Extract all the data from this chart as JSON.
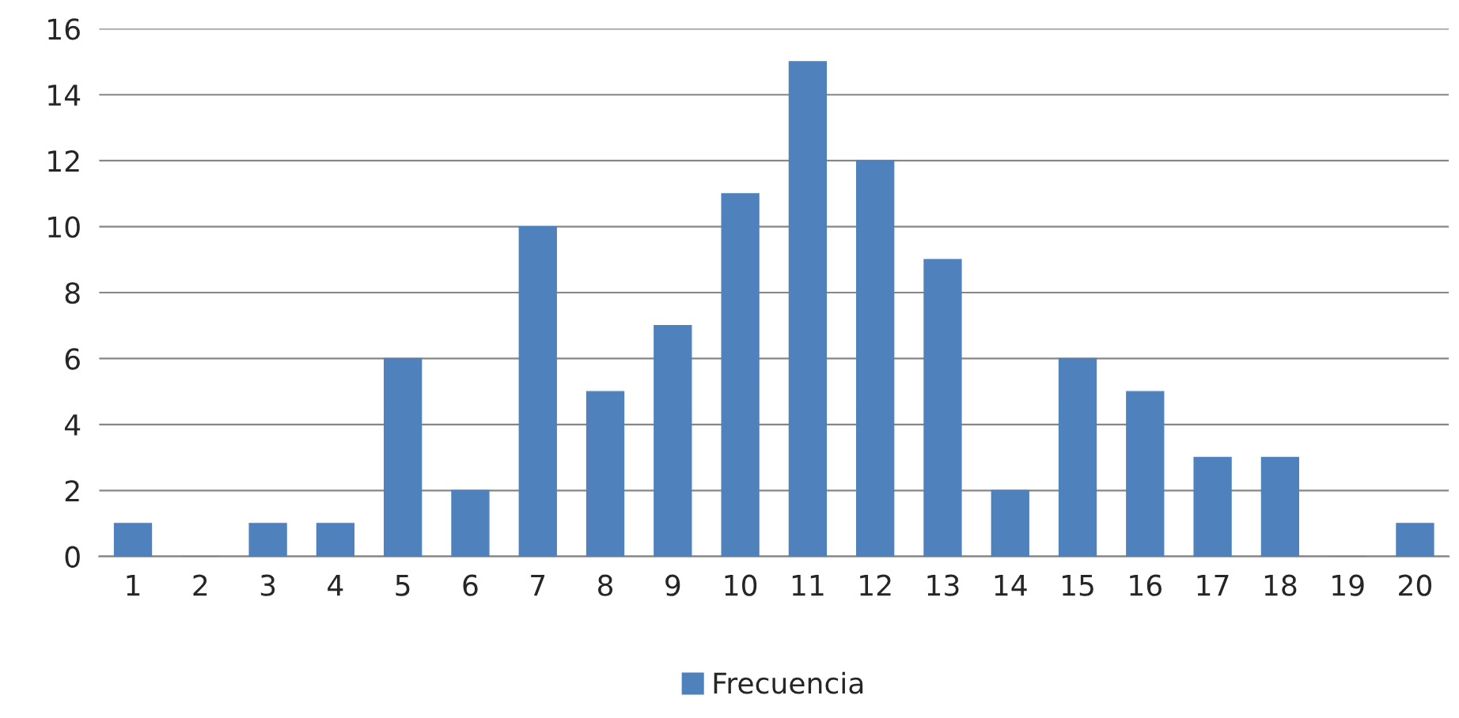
{
  "chart_data": {
    "type": "bar",
    "categories": [
      "1",
      "2",
      "3",
      "4",
      "5",
      "6",
      "7",
      "8",
      "9",
      "10",
      "11",
      "12",
      "13",
      "14",
      "15",
      "16",
      "17",
      "18",
      "19",
      "20"
    ],
    "series": [
      {
        "name": "Frecuencia",
        "color": "#4f81bd",
        "values": [
          1,
          0,
          1,
          1,
          6,
          2,
          10,
          5,
          7,
          11,
          15,
          12,
          9,
          2,
          6,
          5,
          3,
          3,
          0,
          1
        ]
      }
    ],
    "ylim": [
      0,
      16
    ],
    "yticks": [
      0,
      2,
      4,
      6,
      8,
      10,
      12,
      14,
      16
    ],
    "grid": "y",
    "legend": "bottom"
  }
}
